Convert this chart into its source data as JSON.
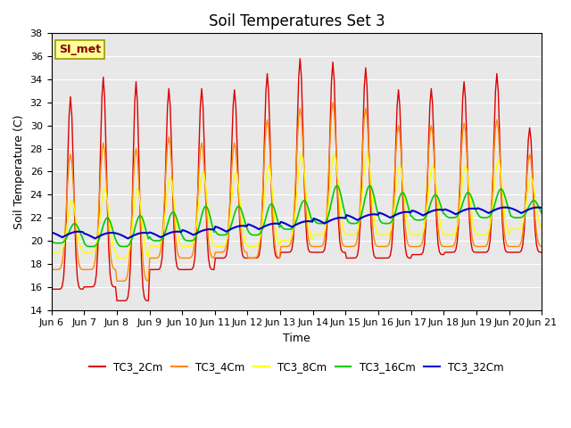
{
  "title": "Soil Temperatures Set 3",
  "xlabel": "Time",
  "ylabel": "Soil Temperature (C)",
  "ylim": [
    14,
    38
  ],
  "yticks": [
    14,
    16,
    18,
    20,
    22,
    24,
    26,
    28,
    30,
    32,
    34,
    36,
    38
  ],
  "xtick_labels": [
    "Jun 6",
    "Jun 7",
    "Jun 8",
    "Jun 9",
    "Jun 10",
    "Jun 11",
    "Jun 12",
    "Jun 13",
    "Jun 14",
    "Jun 15",
    "Jun 16",
    "Jun 17",
    "Jun 18",
    "Jun 19",
    "Jun 20",
    "Jun 21"
  ],
  "series_colors": {
    "TC3_2Cm": "#dd0000",
    "TC3_4Cm": "#ff8800",
    "TC3_8Cm": "#ffff00",
    "TC3_16Cm": "#00cc00",
    "TC3_32Cm": "#0000cc"
  },
  "series_linewidths": {
    "TC3_2Cm": 1.0,
    "TC3_4Cm": 1.0,
    "TC3_8Cm": 1.0,
    "TC3_16Cm": 1.2,
    "TC3_32Cm": 1.5
  },
  "annotation_text": "SI_met",
  "annotation_color": "#8b0000",
  "background_color": "#e8e8e8",
  "title_fontsize": 12,
  "peaks_2cm": [
    32.5,
    34.2,
    33.8,
    33.2,
    33.2,
    33.1,
    34.5,
    35.8,
    35.5,
    35.0,
    33.1,
    33.2,
    33.8,
    34.5,
    29.8
  ],
  "troughs_2cm": [
    15.8,
    16.0,
    14.8,
    17.5,
    17.5,
    18.5,
    18.5,
    19.0,
    19.0,
    18.5,
    18.5,
    18.8,
    19.0,
    19.0,
    19.0
  ],
  "peaks_4cm": [
    27.5,
    28.5,
    28.0,
    29.0,
    28.5,
    28.5,
    30.5,
    31.5,
    32.0,
    31.5,
    30.0,
    30.0,
    30.2,
    30.5,
    27.5
  ],
  "troughs_4cm": [
    17.5,
    17.5,
    16.5,
    18.5,
    18.5,
    19.0,
    18.5,
    19.5,
    19.5,
    19.5,
    19.5,
    19.5,
    19.5,
    19.5,
    19.5
  ],
  "peaks_8cm": [
    23.5,
    24.5,
    24.5,
    25.5,
    26.0,
    26.0,
    26.5,
    27.5,
    27.5,
    27.5,
    26.5,
    26.5,
    26.5,
    27.0,
    25.5
  ],
  "troughs_8cm": [
    19.0,
    19.0,
    18.5,
    19.5,
    19.5,
    19.5,
    19.5,
    20.0,
    20.5,
    20.5,
    20.5,
    20.5,
    20.5,
    20.5,
    21.0
  ],
  "peaks_16cm": [
    21.5,
    22.0,
    22.2,
    22.5,
    23.0,
    23.0,
    23.2,
    23.5,
    24.8,
    24.8,
    24.2,
    24.0,
    24.2,
    24.5,
    23.5
  ],
  "troughs_16cm": [
    19.8,
    19.5,
    19.5,
    20.0,
    20.0,
    20.5,
    20.5,
    21.0,
    21.5,
    21.5,
    21.5,
    21.8,
    22.0,
    22.0,
    22.0
  ],
  "base_32cm": [
    20.3,
    20.2,
    20.2,
    20.3,
    20.5,
    20.8,
    21.0,
    21.2,
    21.5,
    21.8,
    22.0,
    22.2,
    22.3,
    22.4,
    22.4
  ],
  "peak_hour_2cm": 14,
  "peak_hour_4cm": 14,
  "peak_hour_8cm": 15,
  "peak_hour_16cm": 17,
  "peak_hour_32cm": 20,
  "peak_sharpness_2cm": 6,
  "peak_sharpness_4cm": 4,
  "peak_sharpness_8cm": 3,
  "peak_sharpness_16cm": 2,
  "peak_sharpness_32cm": 1
}
